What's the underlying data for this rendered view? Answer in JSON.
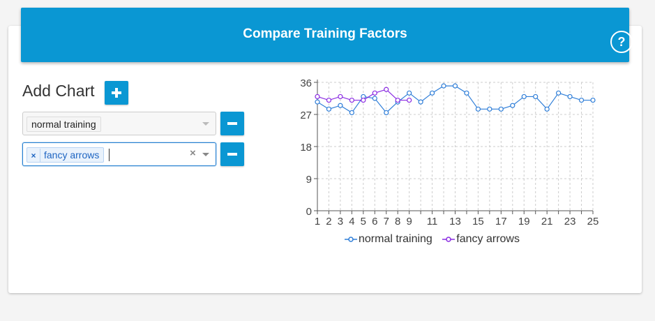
{
  "header": {
    "title": "Compare Training Factors",
    "help_label": "?"
  },
  "controls": {
    "add_chart_label": "Add Chart",
    "selects": [
      {
        "value": "normal training",
        "removable": false,
        "active": false
      },
      {
        "value": "fancy arrows",
        "removable": true,
        "active": true,
        "remove_label": "×",
        "clear_label": "×"
      }
    ]
  },
  "colors": {
    "accent": "#0a97d3",
    "series_blue": "#2f7ed8",
    "series_purple": "#8a2be2"
  },
  "chart_data": {
    "type": "line",
    "x_ticks": [
      1,
      2,
      3,
      4,
      5,
      6,
      7,
      8,
      9,
      11,
      13,
      15,
      17,
      19,
      21,
      23,
      25
    ],
    "y_ticks": [
      0,
      9,
      18,
      27,
      36
    ],
    "xlim": [
      1,
      25
    ],
    "ylim": [
      0,
      36
    ],
    "grid": true,
    "legend_position": "bottom",
    "series": [
      {
        "name": "normal training",
        "color": "#2f7ed8",
        "x": [
          1,
          2,
          3,
          4,
          5,
          6,
          7,
          8,
          9,
          10,
          11,
          12,
          13,
          14,
          15,
          16,
          17,
          18,
          19,
          20,
          21,
          22,
          23,
          24,
          25
        ],
        "values": [
          30.5,
          28.5,
          29.5,
          27.5,
          32,
          31.5,
          27.5,
          30.5,
          33,
          30.5,
          33,
          35,
          35,
          33,
          28.5,
          28.5,
          28.5,
          29.5,
          32,
          32,
          28.5,
          33,
          32,
          31,
          31
        ]
      },
      {
        "name": "fancy arrows",
        "color": "#8a2be2",
        "x": [
          1,
          2,
          3,
          4,
          5,
          6,
          7,
          8,
          9
        ],
        "values": [
          32,
          31,
          32,
          31,
          31,
          33,
          34,
          31,
          31
        ]
      }
    ]
  }
}
